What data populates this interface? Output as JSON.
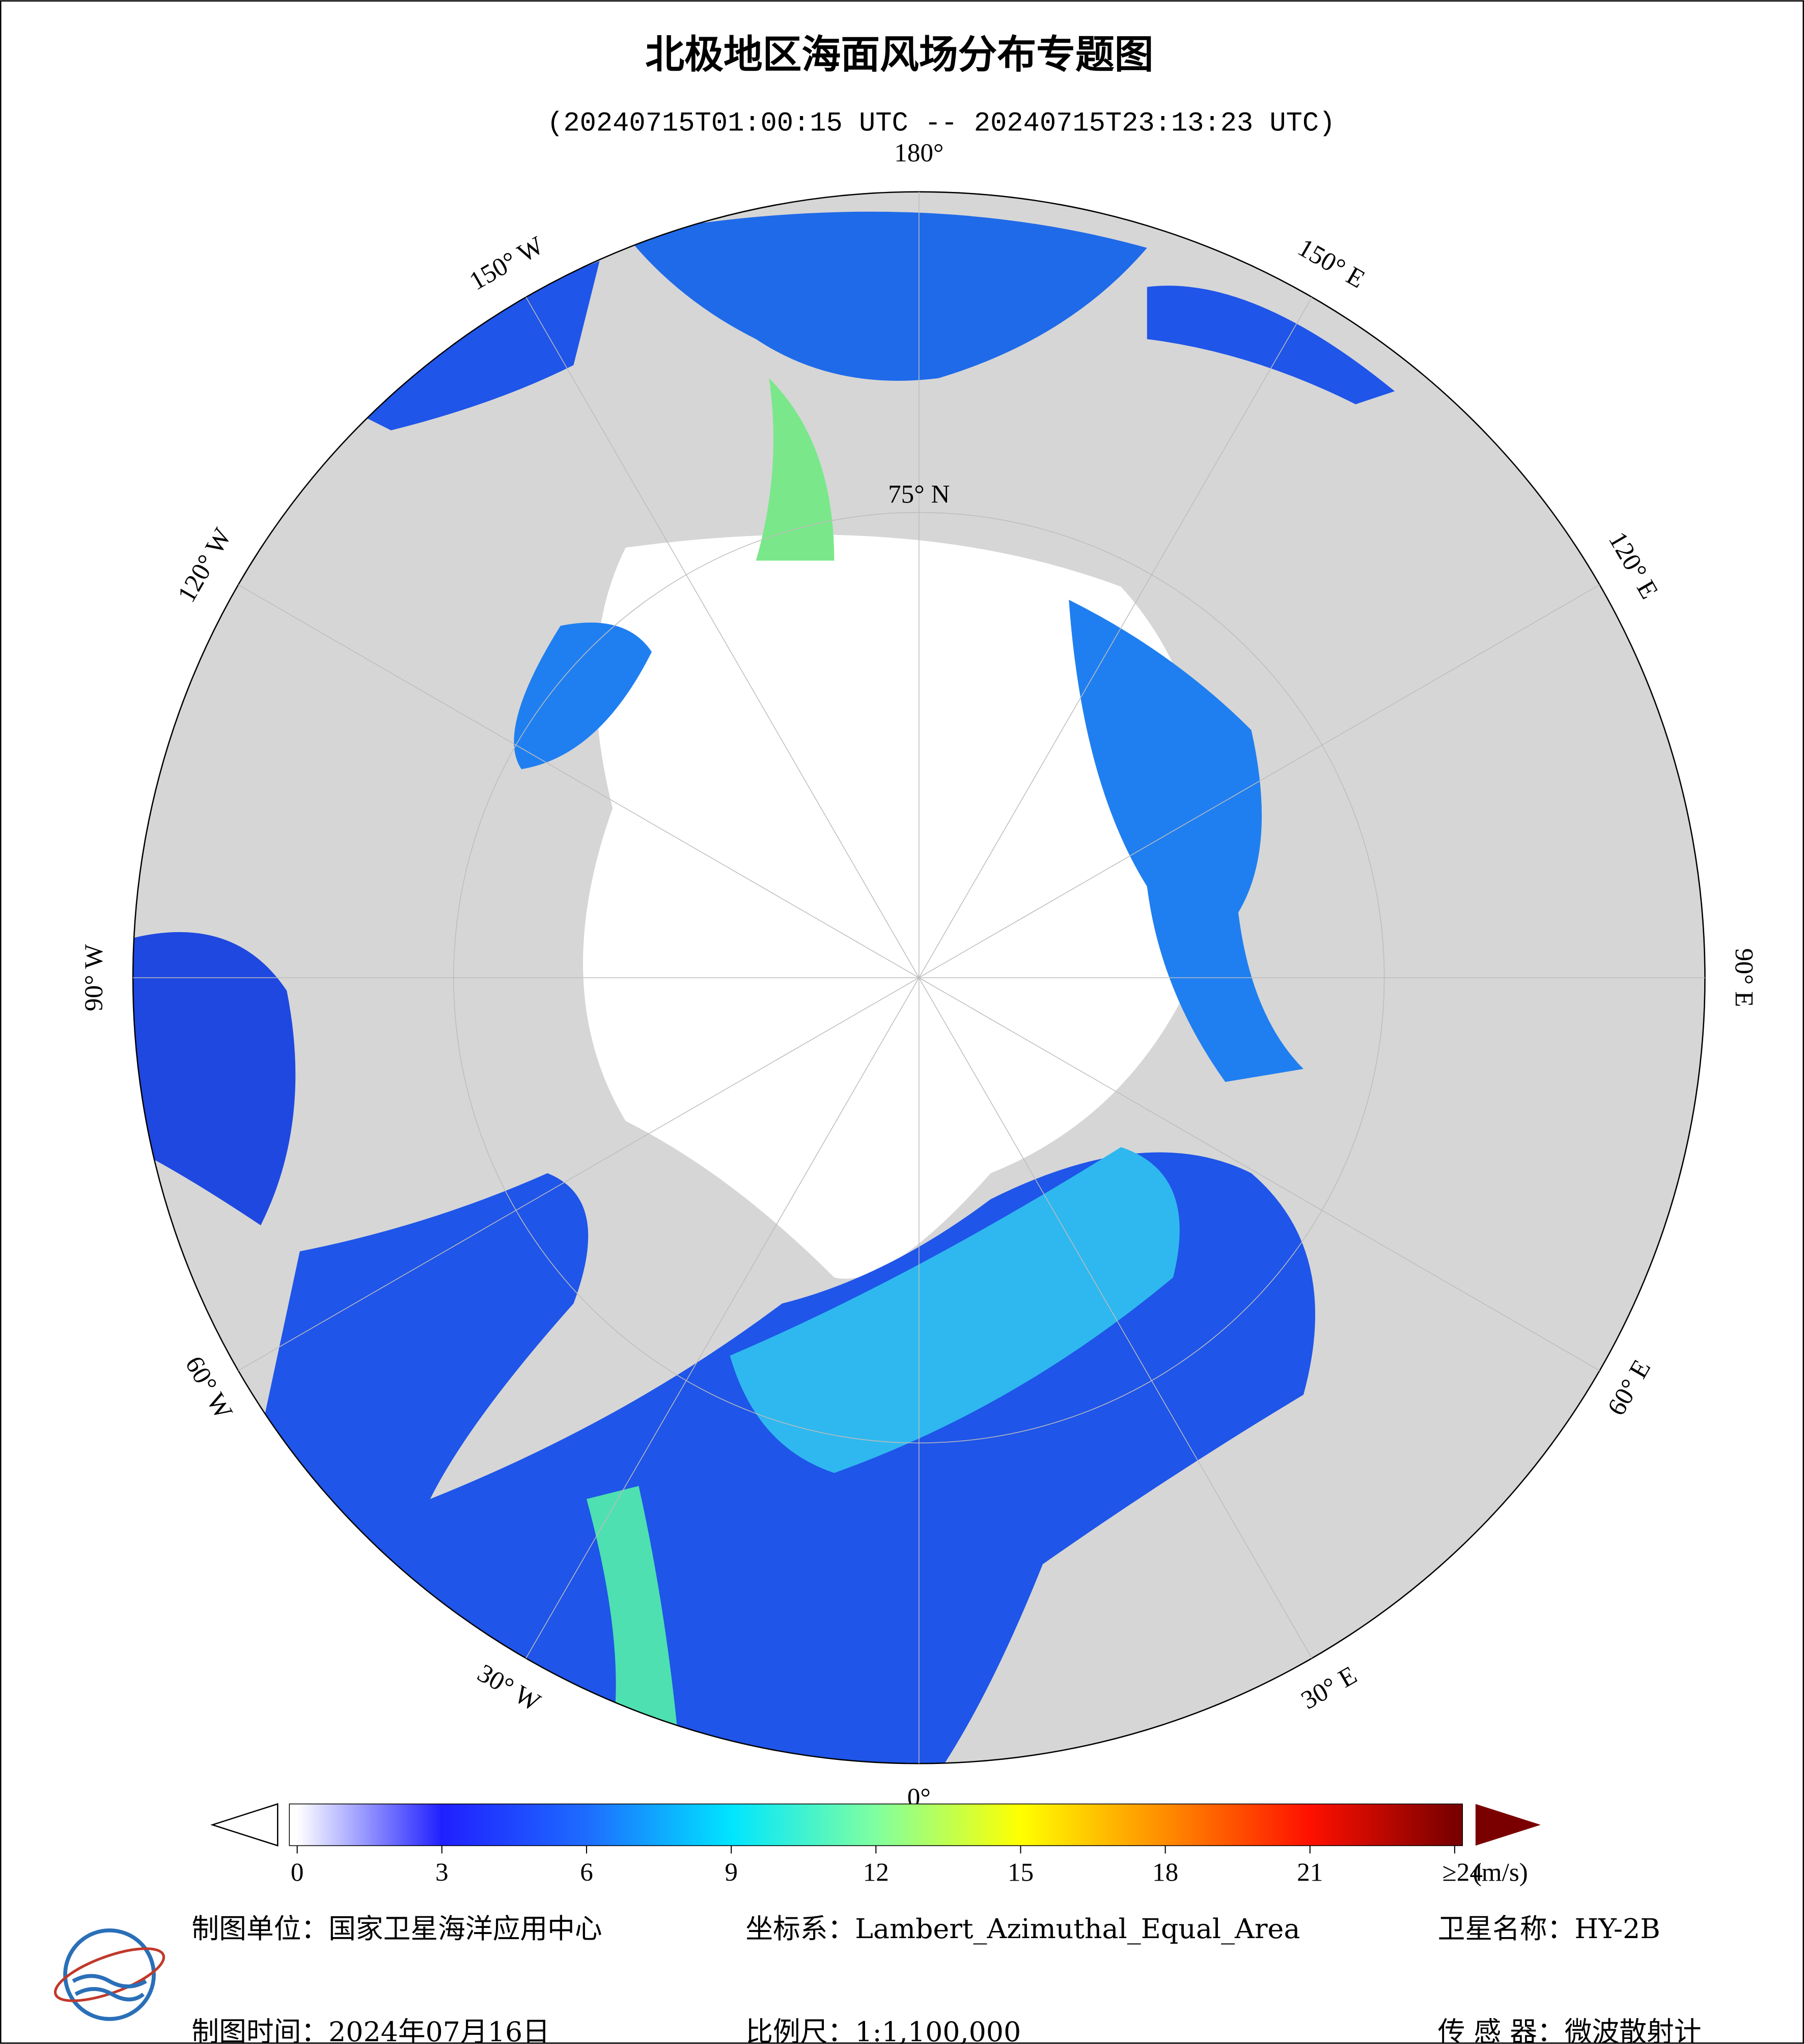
{
  "title": "北极地区海面风场分布专题图",
  "subtitle": "(20240715T01:00:15 UTC -- 20240715T23:13:23 UTC)",
  "map": {
    "longitude_labels": [
      {
        "value": 180,
        "label": "180°"
      },
      {
        "value": 150,
        "label": "150° E"
      },
      {
        "value": 120,
        "label": "120° E"
      },
      {
        "value": 90,
        "label": "90° E"
      },
      {
        "value": 60,
        "label": "60° E"
      },
      {
        "value": 30,
        "label": "30° E"
      },
      {
        "value": 0,
        "label": "0°"
      },
      {
        "value": -30,
        "label": "30° W"
      },
      {
        "value": -60,
        "label": "60° W"
      },
      {
        "value": -90,
        "label": "90° W"
      },
      {
        "value": -120,
        "label": "120° W"
      },
      {
        "value": -150,
        "label": "150° W"
      }
    ],
    "latitude_labels": [
      {
        "value": 75,
        "label": "75° N"
      }
    ]
  },
  "colorbar": {
    "ticks": [
      0,
      3,
      6,
      9,
      12,
      15,
      18,
      21,
      {
        "value": 24,
        "label": "≥24"
      }
    ],
    "unit": "(m/s)",
    "colors": [
      "#ffffff",
      "#2020ff",
      "#1e6cff",
      "#00e5ff",
      "#80ffa0",
      "#ffff00",
      "#ff8c00",
      "#ff1000",
      "#7a0000"
    ]
  },
  "footer": {
    "producer": "制图单位：国家卫星海洋应用中心",
    "projection": "坐标系：Lambert_Azimuthal_Equal_Area",
    "satellite": "卫星名称：HY-2B",
    "date": "制图时间：2024年07月16日",
    "scale": "比例尺：1:1,100,000",
    "sensor": "传 感 器：微波散射计"
  }
}
